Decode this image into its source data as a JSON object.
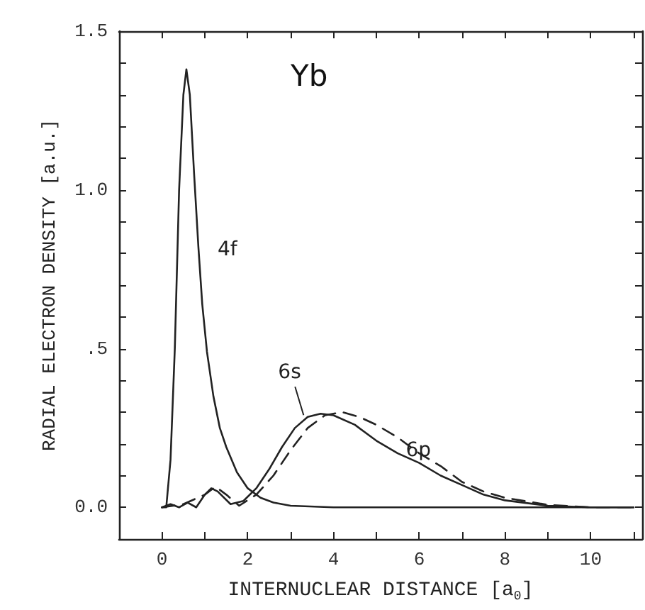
{
  "chart_data": {
    "type": "line",
    "title": "Yb",
    "xlabel": "INTERNUCLEAR DISTANCE [a$_{0}$]",
    "ylabel": "RADIAL ELECTRON DENSITY [a.u.]",
    "xlim": [
      -1,
      11.2
    ],
    "ylim": [
      -0.1,
      1.5
    ],
    "xticks": [
      0,
      {
        "value": 1,
        "label": null
      },
      2,
      {
        "value": 3,
        "label": null
      },
      4,
      {
        "value": 5,
        "label": null
      },
      6,
      {
        "value": 7,
        "label": null
      },
      8,
      {
        "value": 9,
        "label": null
      },
      10,
      {
        "value": 11,
        "label": null
      }
    ],
    "yticks": [
      {
        "value": 0,
        "label": "0.0"
      },
      {
        "value": 0.1,
        "label": null
      },
      {
        "value": 0.2,
        "label": null
      },
      {
        "value": 0.3,
        "label": null
      },
      {
        "value": 0.4,
        "label": null
      },
      {
        "value": 0.5,
        "label": ".5"
      },
      {
        "value": 0.6,
        "label": null
      },
      {
        "value": 0.7,
        "label": null
      },
      {
        "value": 0.8,
        "label": null
      },
      {
        "value": 0.9,
        "label": null
      },
      {
        "value": 1,
        "label": "1.0"
      },
      {
        "value": 1.1,
        "label": null
      },
      {
        "value": 1.2,
        "label": null
      },
      {
        "value": 1.3,
        "label": null
      },
      {
        "value": 1.4,
        "label": null
      },
      {
        "value": 1.5,
        "label": "1.5"
      }
    ],
    "grid": false,
    "legend": false,
    "marker": "none",
    "series": [
      {
        "name": "4f",
        "color": "#222222",
        "line_style": "solid",
        "x": [
          0,
          0.1,
          0.2,
          0.3,
          0.4,
          0.5,
          0.57,
          0.65,
          0.75,
          0.85,
          0.94,
          1.05,
          1.2,
          1.35,
          1.5,
          1.75,
          2,
          2.3,
          2.6,
          3,
          4,
          11
        ],
        "values": [
          0,
          0,
          0.15,
          0.5,
          1,
          1.3,
          1.38,
          1.3,
          1.05,
          0.82,
          0.64,
          0.49,
          0.35,
          0.25,
          0.19,
          0.11,
          0.06,
          0.03,
          0.015,
          0.005,
          0,
          0
        ]
      },
      {
        "name": "6s",
        "color": "#222222",
        "line_style": "solid",
        "x": [
          0,
          0.2,
          0.4,
          0.6,
          0.8,
          1,
          1.15,
          1.3,
          1.6,
          1.9,
          2.2,
          2.5,
          2.8,
          3.1,
          3.4,
          3.7,
          4,
          4.5,
          5,
          5.5,
          6,
          6.5,
          7,
          7.5,
          8,
          9,
          10,
          11
        ],
        "values": [
          0,
          0.01,
          0,
          0.015,
          0,
          0.04,
          0.06,
          0.05,
          0.01,
          0.02,
          0.06,
          0.12,
          0.19,
          0.25,
          0.285,
          0.295,
          0.29,
          0.26,
          0.21,
          0.17,
          0.14,
          0.1,
          0.07,
          0.04,
          0.022,
          0.005,
          0,
          0
        ]
      },
      {
        "name": "6p",
        "color": "#222222",
        "line_style": "dashed",
        "x": [
          0,
          0.5,
          1,
          1.25,
          1.5,
          1.8,
          2.2,
          2.6,
          3,
          3.4,
          3.8,
          4.2,
          4.6,
          5,
          5.5,
          6,
          6.5,
          7,
          7.5,
          8,
          9,
          10,
          11
        ],
        "values": [
          0,
          0.01,
          0.04,
          0.065,
          0.04,
          0.005,
          0.04,
          0.1,
          0.18,
          0.25,
          0.29,
          0.3,
          0.285,
          0.26,
          0.22,
          0.17,
          0.13,
          0.08,
          0.05,
          0.03,
          0.008,
          0,
          0
        ]
      }
    ]
  }
}
